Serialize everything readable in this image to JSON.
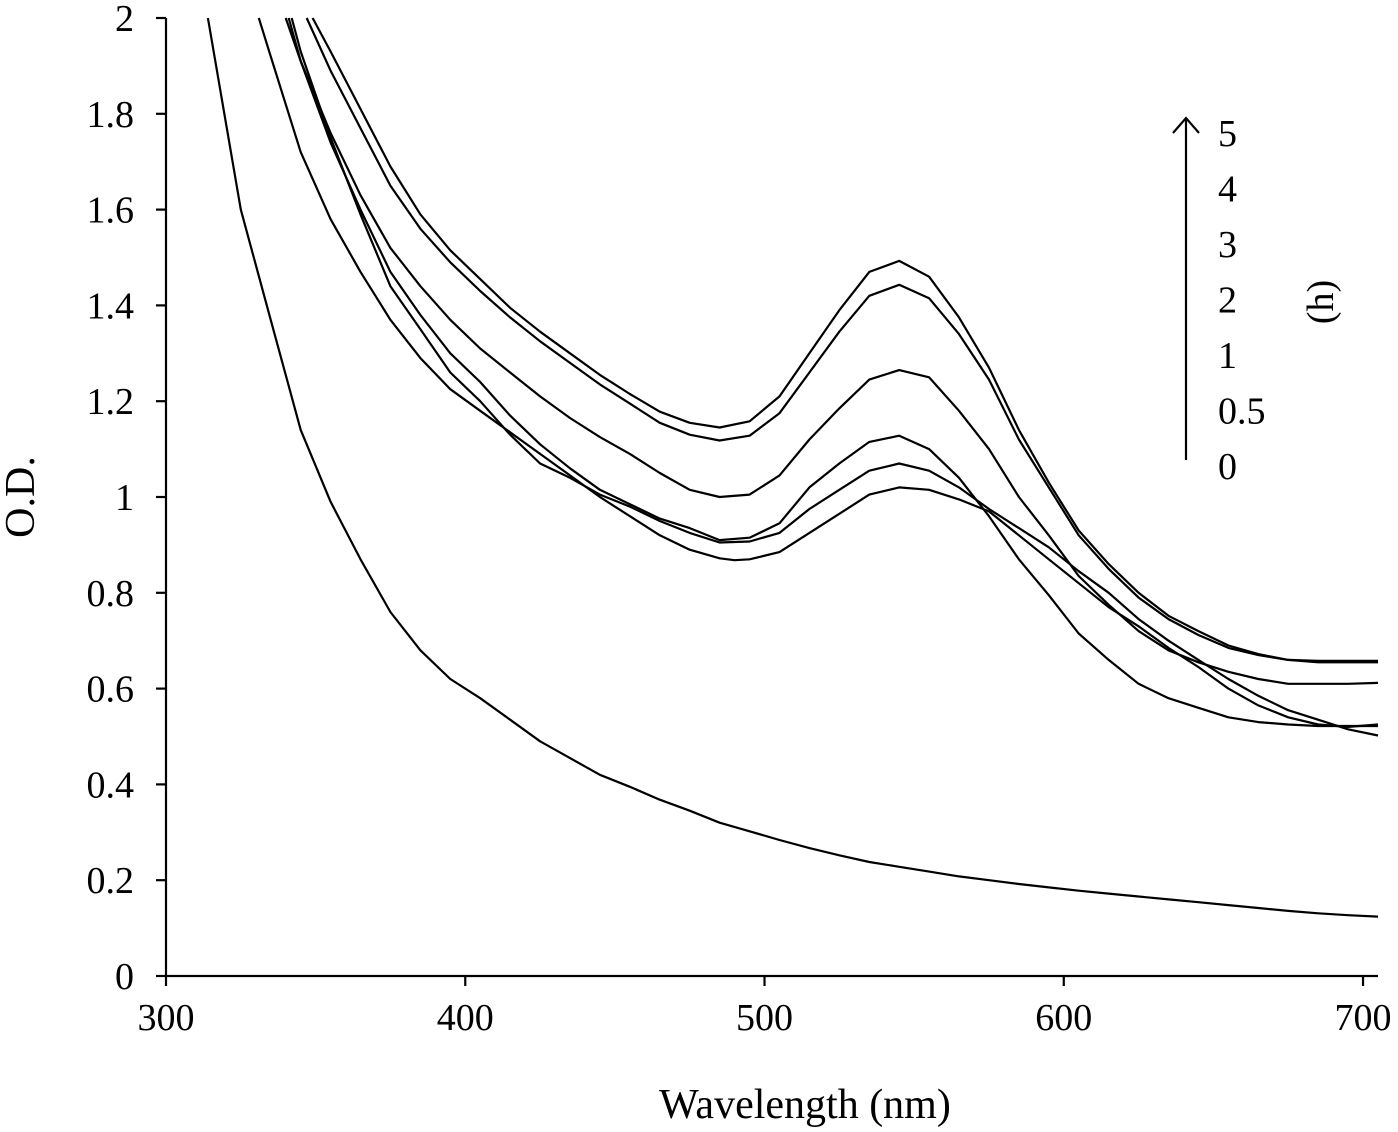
{
  "chart_data": {
    "type": "line",
    "xlabel": "Wavelength (nm)",
    "ylabel": "O.D.",
    "xlim": [
      300,
      705
    ],
    "ylim": [
      0,
      2
    ],
    "x_ticks": [
      "300",
      "400",
      "500",
      "600",
      "700"
    ],
    "y_ticks": [
      "0",
      "0.2",
      "0.4",
      "0.6",
      "0.8",
      "1",
      "1.2",
      "1.4",
      "1.6",
      "1.8",
      "2"
    ],
    "grid": false,
    "legend": {
      "placement": "top-right",
      "entries": [
        "5",
        "4",
        "3",
        "2",
        "1",
        "0.5",
        "0"
      ],
      "unit": "(h)",
      "arrow": "up"
    },
    "series": [
      {
        "label_index": 6,
        "points": [
          [
            314,
            2.0
          ],
          [
            325,
            1.6
          ],
          [
            335,
            1.37
          ],
          [
            345,
            1.14
          ],
          [
            355,
            0.99
          ],
          [
            365,
            0.87
          ],
          [
            375,
            0.76
          ],
          [
            385,
            0.68
          ],
          [
            395,
            0.62
          ],
          [
            405,
            0.58
          ],
          [
            415,
            0.535
          ],
          [
            425,
            0.49
          ],
          [
            435,
            0.455
          ],
          [
            445,
            0.42
          ],
          [
            455,
            0.395
          ],
          [
            465,
            0.368
          ],
          [
            475,
            0.345
          ],
          [
            485,
            0.32
          ],
          [
            495,
            0.302
          ],
          [
            505,
            0.284
          ],
          [
            515,
            0.267
          ],
          [
            525,
            0.252
          ],
          [
            535,
            0.238
          ],
          [
            545,
            0.228
          ],
          [
            555,
            0.218
          ],
          [
            565,
            0.208
          ],
          [
            575,
            0.2
          ],
          [
            585,
            0.192
          ],
          [
            595,
            0.185
          ],
          [
            605,
            0.178
          ],
          [
            615,
            0.172
          ],
          [
            625,
            0.166
          ],
          [
            635,
            0.16
          ],
          [
            645,
            0.154
          ],
          [
            655,
            0.148
          ],
          [
            665,
            0.142
          ],
          [
            675,
            0.136
          ],
          [
            685,
            0.131
          ],
          [
            695,
            0.127
          ],
          [
            705,
            0.124
          ]
        ]
      },
      {
        "label_index": 5,
        "points": [
          [
            331,
            2.0
          ],
          [
            335,
            1.92
          ],
          [
            345,
            1.72
          ],
          [
            355,
            1.58
          ],
          [
            365,
            1.47
          ],
          [
            375,
            1.37
          ],
          [
            385,
            1.29
          ],
          [
            395,
            1.225
          ],
          [
            405,
            1.18
          ],
          [
            415,
            1.135
          ],
          [
            425,
            1.09
          ],
          [
            435,
            1.045
          ],
          [
            445,
            1.0
          ],
          [
            455,
            0.96
          ],
          [
            465,
            0.92
          ],
          [
            475,
            0.89
          ],
          [
            485,
            0.872
          ],
          [
            490,
            0.868
          ],
          [
            495,
            0.87
          ],
          [
            505,
            0.885
          ],
          [
            515,
            0.925
          ],
          [
            525,
            0.965
          ],
          [
            535,
            1.005
          ],
          [
            545,
            1.02
          ],
          [
            555,
            1.015
          ],
          [
            565,
            0.995
          ],
          [
            575,
            0.97
          ],
          [
            585,
            0.92
          ],
          [
            595,
            0.87
          ],
          [
            605,
            0.82
          ],
          [
            615,
            0.77
          ],
          [
            625,
            0.73
          ],
          [
            635,
            0.685
          ],
          [
            645,
            0.645
          ],
          [
            655,
            0.6
          ],
          [
            665,
            0.565
          ],
          [
            675,
            0.54
          ],
          [
            685,
            0.525
          ],
          [
            695,
            0.52
          ],
          [
            705,
            0.525
          ]
        ]
      },
      {
        "label_index": 4,
        "points": [
          [
            342,
            2.0
          ],
          [
            345,
            1.93
          ],
          [
            355,
            1.75
          ],
          [
            365,
            1.59
          ],
          [
            375,
            1.44
          ],
          [
            385,
            1.35
          ],
          [
            395,
            1.26
          ],
          [
            405,
            1.2
          ],
          [
            415,
            1.13
          ],
          [
            425,
            1.07
          ],
          [
            435,
            1.04
          ],
          [
            445,
            1.005
          ],
          [
            455,
            0.98
          ],
          [
            465,
            0.95
          ],
          [
            475,
            0.925
          ],
          [
            485,
            0.905
          ],
          [
            495,
            0.907
          ],
          [
            505,
            0.925
          ],
          [
            515,
            0.975
          ],
          [
            525,
            1.015
          ],
          [
            535,
            1.055
          ],
          [
            545,
            1.07
          ],
          [
            555,
            1.055
          ],
          [
            565,
            1.02
          ],
          [
            575,
            0.975
          ],
          [
            585,
            0.935
          ],
          [
            595,
            0.895
          ],
          [
            605,
            0.845
          ],
          [
            615,
            0.8
          ],
          [
            625,
            0.745
          ],
          [
            635,
            0.7
          ],
          [
            645,
            0.66
          ],
          [
            655,
            0.62
          ],
          [
            665,
            0.585
          ],
          [
            675,
            0.555
          ],
          [
            685,
            0.535
          ],
          [
            695,
            0.515
          ],
          [
            705,
            0.502
          ]
        ]
      },
      {
        "label_index": 3,
        "points": [
          [
            340,
            2.0
          ],
          [
            345,
            1.91
          ],
          [
            355,
            1.74
          ],
          [
            365,
            1.6
          ],
          [
            375,
            1.47
          ],
          [
            385,
            1.38
          ],
          [
            395,
            1.3
          ],
          [
            405,
            1.24
          ],
          [
            415,
            1.17
          ],
          [
            425,
            1.11
          ],
          [
            435,
            1.06
          ],
          [
            445,
            1.015
          ],
          [
            455,
            0.985
          ],
          [
            465,
            0.955
          ],
          [
            475,
            0.935
          ],
          [
            485,
            0.91
          ],
          [
            495,
            0.915
          ],
          [
            505,
            0.945
          ],
          [
            515,
            1.02
          ],
          [
            525,
            1.07
          ],
          [
            535,
            1.115
          ],
          [
            545,
            1.128
          ],
          [
            555,
            1.1
          ],
          [
            565,
            1.04
          ],
          [
            575,
            0.96
          ],
          [
            585,
            0.87
          ],
          [
            595,
            0.795
          ],
          [
            605,
            0.715
          ],
          [
            615,
            0.66
          ],
          [
            625,
            0.61
          ],
          [
            635,
            0.58
          ],
          [
            645,
            0.56
          ],
          [
            655,
            0.54
          ],
          [
            665,
            0.53
          ],
          [
            675,
            0.525
          ],
          [
            685,
            0.522
          ],
          [
            695,
            0.522
          ],
          [
            705,
            0.522
          ]
        ]
      },
      {
        "label_index": 2,
        "points": [
          [
            341,
            2.0
          ],
          [
            345,
            1.91
          ],
          [
            355,
            1.76
          ],
          [
            365,
            1.63
          ],
          [
            375,
            1.52
          ],
          [
            385,
            1.44
          ],
          [
            395,
            1.37
          ],
          [
            405,
            1.31
          ],
          [
            415,
            1.26
          ],
          [
            425,
            1.21
          ],
          [
            435,
            1.165
          ],
          [
            445,
            1.125
          ],
          [
            455,
            1.09
          ],
          [
            465,
            1.05
          ],
          [
            475,
            1.015
          ],
          [
            485,
            1.0
          ],
          [
            495,
            1.005
          ],
          [
            505,
            1.045
          ],
          [
            515,
            1.12
          ],
          [
            525,
            1.185
          ],
          [
            535,
            1.245
          ],
          [
            545,
            1.265
          ],
          [
            555,
            1.25
          ],
          [
            565,
            1.18
          ],
          [
            575,
            1.1
          ],
          [
            585,
            1.0
          ],
          [
            595,
            0.92
          ],
          [
            605,
            0.835
          ],
          [
            615,
            0.775
          ],
          [
            625,
            0.72
          ],
          [
            635,
            0.68
          ],
          [
            645,
            0.655
          ],
          [
            655,
            0.635
          ],
          [
            665,
            0.62
          ],
          [
            675,
            0.61
          ],
          [
            685,
            0.61
          ],
          [
            695,
            0.61
          ],
          [
            705,
            0.612
          ]
        ]
      },
      {
        "label_index": 1,
        "points": [
          [
            347,
            2.0
          ],
          [
            355,
            1.89
          ],
          [
            365,
            1.77
          ],
          [
            375,
            1.65
          ],
          [
            385,
            1.56
          ],
          [
            395,
            1.49
          ],
          [
            405,
            1.43
          ],
          [
            415,
            1.375
          ],
          [
            425,
            1.325
          ],
          [
            435,
            1.28
          ],
          [
            445,
            1.235
          ],
          [
            455,
            1.195
          ],
          [
            465,
            1.155
          ],
          [
            475,
            1.13
          ],
          [
            485,
            1.118
          ],
          [
            495,
            1.128
          ],
          [
            505,
            1.175
          ],
          [
            515,
            1.26
          ],
          [
            525,
            1.345
          ],
          [
            535,
            1.42
          ],
          [
            545,
            1.443
          ],
          [
            555,
            1.415
          ],
          [
            565,
            1.34
          ],
          [
            575,
            1.245
          ],
          [
            585,
            1.12
          ],
          [
            595,
            1.02
          ],
          [
            605,
            0.92
          ],
          [
            615,
            0.85
          ],
          [
            625,
            0.79
          ],
          [
            635,
            0.745
          ],
          [
            645,
            0.712
          ],
          [
            655,
            0.685
          ],
          [
            665,
            0.67
          ],
          [
            675,
            0.66
          ],
          [
            685,
            0.658
          ],
          [
            695,
            0.658
          ],
          [
            705,
            0.658
          ]
        ]
      },
      {
        "label_index": 0,
        "points": [
          [
            349,
            2.0
          ],
          [
            355,
            1.93
          ],
          [
            365,
            1.81
          ],
          [
            375,
            1.69
          ],
          [
            385,
            1.59
          ],
          [
            395,
            1.515
          ],
          [
            405,
            1.455
          ],
          [
            415,
            1.395
          ],
          [
            425,
            1.345
          ],
          [
            435,
            1.3
          ],
          [
            445,
            1.255
          ],
          [
            455,
            1.215
          ],
          [
            465,
            1.178
          ],
          [
            475,
            1.155
          ],
          [
            485,
            1.145
          ],
          [
            495,
            1.158
          ],
          [
            505,
            1.21
          ],
          [
            515,
            1.3
          ],
          [
            525,
            1.39
          ],
          [
            535,
            1.47
          ],
          [
            545,
            1.493
          ],
          [
            555,
            1.46
          ],
          [
            565,
            1.375
          ],
          [
            575,
            1.27
          ],
          [
            585,
            1.14
          ],
          [
            595,
            1.03
          ],
          [
            605,
            0.93
          ],
          [
            615,
            0.86
          ],
          [
            625,
            0.8
          ],
          [
            635,
            0.752
          ],
          [
            645,
            0.72
          ],
          [
            655,
            0.69
          ],
          [
            665,
            0.672
          ],
          [
            675,
            0.66
          ],
          [
            685,
            0.655
          ],
          [
            695,
            0.655
          ],
          [
            705,
            0.655
          ]
        ]
      }
    ]
  }
}
